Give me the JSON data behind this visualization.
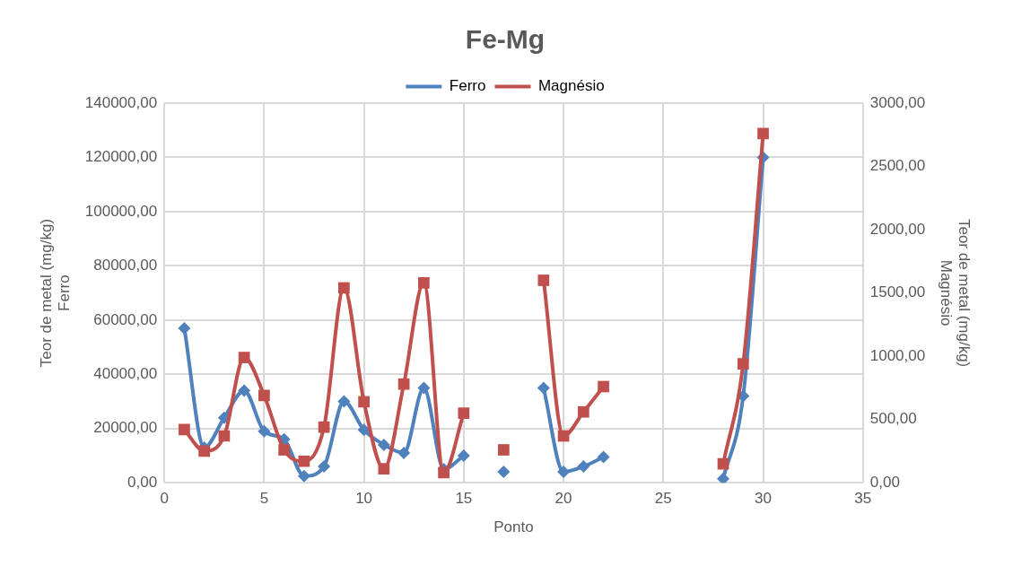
{
  "chart_data": {
    "type": "line",
    "title": "Fe-Mg",
    "xlabel": "Ponto",
    "ylabel": "Teor de metal (mg/kg)\nFerro",
    "y2label": "Teor de metal (mg/kg)\nMagnésio",
    "x": [
      1,
      2,
      3,
      4,
      5,
      6,
      7,
      8,
      9,
      10,
      11,
      12,
      13,
      14,
      15,
      16,
      17,
      18,
      19,
      20,
      21,
      22,
      23,
      24,
      25,
      26,
      27,
      28,
      29,
      30
    ],
    "series": [
      {
        "name": "Ferro",
        "color": "#4f81bd",
        "marker": "diamond",
        "values": [
          57000,
          13000,
          24000,
          34000,
          19000,
          16000,
          2500,
          6000,
          30000,
          19500,
          14000,
          11000,
          35000,
          5000,
          10000,
          null,
          4000,
          null,
          35000,
          4000,
          6000,
          9500,
          null,
          null,
          null,
          null,
          null,
          1500,
          32000,
          120000
        ]
      },
      {
        "name": "Magnésio",
        "color": "#c0504d",
        "marker": "square",
        "axis": "y2",
        "values": [
          420,
          250,
          370,
          990,
          690,
          260,
          170,
          440,
          1540,
          640,
          110,
          780,
          1580,
          80,
          550,
          null,
          260,
          null,
          1600,
          370,
          560,
          760,
          null,
          null,
          null,
          null,
          null,
          150,
          940,
          2760
        ]
      }
    ],
    "xlim": [
      0,
      35
    ],
    "xticks": [
      0,
      5,
      10,
      15,
      20,
      25,
      30,
      35
    ],
    "ylim": [
      0,
      140000
    ],
    "yticks": [
      {
        "value": 0,
        "label": "0,00"
      },
      {
        "value": 20000,
        "label": "20000,00"
      },
      {
        "value": 40000,
        "label": "40000,00"
      },
      {
        "value": 60000,
        "label": "60000,00"
      },
      {
        "value": 80000,
        "label": "80000,00"
      },
      {
        "value": 100000,
        "label": "100000,00"
      },
      {
        "value": 120000,
        "label": "120000,00"
      },
      {
        "value": 140000,
        "label": "140000,00"
      }
    ],
    "y2lim": [
      0,
      3000
    ],
    "y2ticks": [
      {
        "value": 0,
        "label": "0,00"
      },
      {
        "value": 500,
        "label": "500,00"
      },
      {
        "value": 1000,
        "label": "1000,00"
      },
      {
        "value": 1500,
        "label": "1500,00"
      },
      {
        "value": 2000,
        "label": "2000,00"
      },
      {
        "value": 2500,
        "label": "2500,00"
      },
      {
        "value": 3000,
        "label": "3000,00"
      }
    ],
    "grid": true,
    "legend": "top",
    "line_style": "solid"
  }
}
